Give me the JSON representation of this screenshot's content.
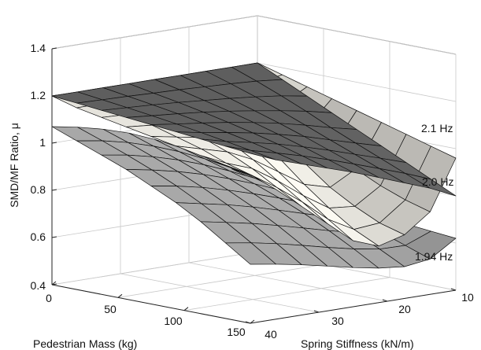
{
  "chart_data": {
    "type": "surface3d",
    "title": "",
    "xlabel": "Pedestrian Mass (kg)",
    "ylabel": "Spring Stiffness (kN/m)",
    "zlabel": "SMD/MF Ratio, μ",
    "xlim": [
      0,
      150
    ],
    "ylim": [
      10,
      40
    ],
    "zlim": [
      0.4,
      1.4
    ],
    "xticks": [
      "0",
      "50",
      "100",
      "150"
    ],
    "yticks": [
      "10",
      "20",
      "30",
      "40"
    ],
    "zticks": [
      "0.4",
      "0.6",
      "0.8",
      "1",
      "1.2",
      "1.4"
    ],
    "grid": true,
    "mass": [
      0,
      18.75,
      37.5,
      56.25,
      75,
      93.75,
      112.5,
      131.25,
      150
    ],
    "stiffness": [
      10,
      13.75,
      17.5,
      21.25,
      25,
      28.75,
      32.5,
      36.25,
      40
    ],
    "series": [
      {
        "name": "2.1 Hz",
        "color": "#5e5e5e",
        "values": [
          [
            1.2,
            1.2,
            1.2,
            1.2,
            1.2,
            1.2,
            1.2,
            1.2,
            1.2
          ],
          [
            1.15,
            1.161,
            1.167,
            1.172,
            1.177,
            1.18,
            1.184,
            1.187,
            1.19
          ],
          [
            1.1,
            1.119,
            1.132,
            1.143,
            1.152,
            1.161,
            1.168,
            1.174,
            1.18
          ],
          [
            1.05,
            1.074,
            1.094,
            1.111,
            1.127,
            1.14,
            1.151,
            1.16,
            1.17
          ],
          [
            1.0,
            1.025,
            1.053,
            1.078,
            1.099,
            1.117,
            1.132,
            1.145,
            1.16
          ],
          [
            0.95,
            0.98,
            1.011,
            1.043,
            1.069,
            1.093,
            1.112,
            1.129,
            1.15
          ],
          [
            0.9,
            0.936,
            0.97,
            1.005,
            1.037,
            1.066,
            1.09,
            1.112,
            1.14
          ],
          [
            0.85,
            0.892,
            0.93,
            0.967,
            1.003,
            1.036,
            1.066,
            1.094,
            1.13
          ],
          [
            0.8,
            0.85,
            0.89,
            0.93,
            0.97,
            1.005,
            1.04,
            1.075,
            1.12
          ]
        ]
      },
      {
        "name": "2.0 Hz",
        "color": "#e4e2db",
        "values": [
          [
            1.2,
            1.2,
            1.2,
            1.2,
            1.2,
            1.2,
            1.2,
            1.2,
            1.2
          ],
          [
            1.17,
            1.15,
            1.15,
            1.16,
            1.164,
            1.167,
            1.17,
            1.172,
            1.17
          ],
          [
            1.14,
            1.08,
            1.07,
            1.1,
            1.12,
            1.13,
            1.14,
            1.145,
            1.15
          ],
          [
            1.11,
            1.0,
            0.98,
            1.02,
            1.06,
            1.09,
            1.11,
            1.12,
            1.13
          ],
          [
            1.08,
            0.93,
            0.89,
            0.93,
            0.99,
            1.04,
            1.07,
            1.09,
            1.11
          ],
          [
            1.05,
            0.87,
            0.81,
            0.84,
            0.91,
            0.98,
            1.03,
            1.06,
            1.09
          ],
          [
            1.02,
            0.82,
            0.75,
            0.76,
            0.83,
            0.91,
            0.98,
            1.02,
            1.07
          ],
          [
            0.99,
            0.78,
            0.7,
            0.69,
            0.75,
            0.84,
            0.92,
            0.99,
            1.05
          ],
          [
            0.96,
            0.75,
            0.67,
            0.64,
            0.68,
            0.77,
            0.86,
            0.95,
            1.03
          ]
        ]
      },
      {
        "name": "1.94 Hz",
        "color": "#a3a3a3",
        "values": [
          [
            0.7,
            0.768,
            0.834,
            0.894,
            0.946,
            0.99,
            1.024,
            1.05,
            1.07
          ],
          [
            0.69,
            0.752,
            0.811,
            0.866,
            0.914,
            0.955,
            0.988,
            1.013,
            1.03
          ],
          [
            0.68,
            0.734,
            0.786,
            0.835,
            0.879,
            0.917,
            0.948,
            0.973,
            0.99
          ],
          [
            0.67,
            0.712,
            0.757,
            0.801,
            0.841,
            0.876,
            0.906,
            0.93,
            0.95
          ],
          [
            0.66,
            0.687,
            0.723,
            0.761,
            0.797,
            0.83,
            0.859,
            0.882,
            0.9
          ],
          [
            0.65,
            0.657,
            0.684,
            0.716,
            0.748,
            0.779,
            0.806,
            0.828,
            0.85
          ],
          [
            0.64,
            0.624,
            0.639,
            0.664,
            0.693,
            0.721,
            0.747,
            0.769,
            0.79
          ],
          [
            0.63,
            0.587,
            0.589,
            0.607,
            0.631,
            0.657,
            0.682,
            0.703,
            0.72
          ],
          [
            0.62,
            0.55,
            0.535,
            0.546,
            0.566,
            0.59,
            0.613,
            0.633,
            0.65
          ]
        ]
      }
    ]
  }
}
